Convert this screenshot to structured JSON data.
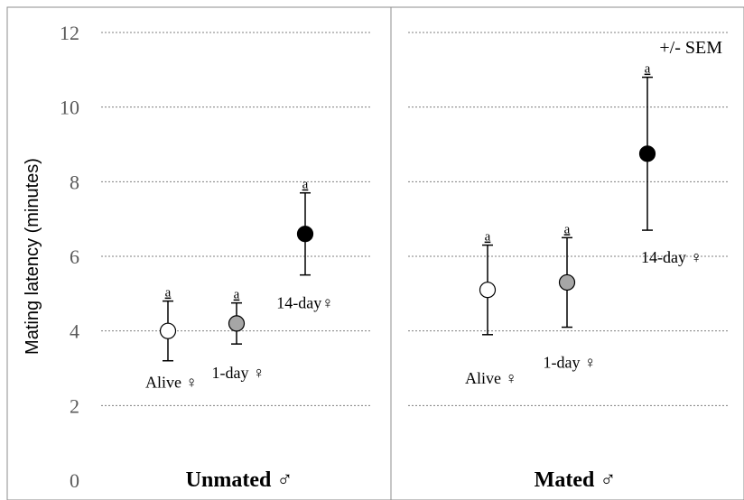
{
  "chart_data": {
    "type": "scatter",
    "ylabel": "Mating latency (minutes)",
    "ylim": [
      0,
      12
    ],
    "yticks": [
      "0",
      "2",
      "4",
      "6",
      "8",
      "10",
      "12"
    ],
    "grid": true,
    "annotation": "+/- SEM",
    "colors": {
      "alive": "#ffffff",
      "one_day": "#a6a6a6",
      "fourteen_day": "#000000"
    },
    "panels": [
      {
        "title": "Unmated ♂",
        "points": [
          {
            "label": "Alive ♀",
            "value": 4.0,
            "sem_low": 3.2,
            "sem_high": 4.8,
            "sig": "a",
            "fill": "#ffffff"
          },
          {
            "label": "1-day ♀",
            "value": 4.2,
            "sem_low": 3.65,
            "sem_high": 4.75,
            "sig": "a",
            "fill": "#a6a6a6"
          },
          {
            "label": "14-day♀",
            "value": 6.6,
            "sem_low": 5.5,
            "sem_high": 7.7,
            "sig": "a",
            "fill": "#000000"
          }
        ]
      },
      {
        "title": "Mated ♂",
        "points": [
          {
            "label": "Alive ♀",
            "value": 5.1,
            "sem_low": 3.9,
            "sem_high": 6.3,
            "sig": "a",
            "fill": "#ffffff"
          },
          {
            "label": "1-day ♀",
            "value": 5.3,
            "sem_low": 4.1,
            "sem_high": 6.5,
            "sig": "a",
            "fill": "#a6a6a6"
          },
          {
            "label": "14-day ♀",
            "value": 8.75,
            "sem_low": 6.7,
            "sem_high": 10.8,
            "sig": "a",
            "fill": "#000000"
          }
        ]
      }
    ]
  }
}
